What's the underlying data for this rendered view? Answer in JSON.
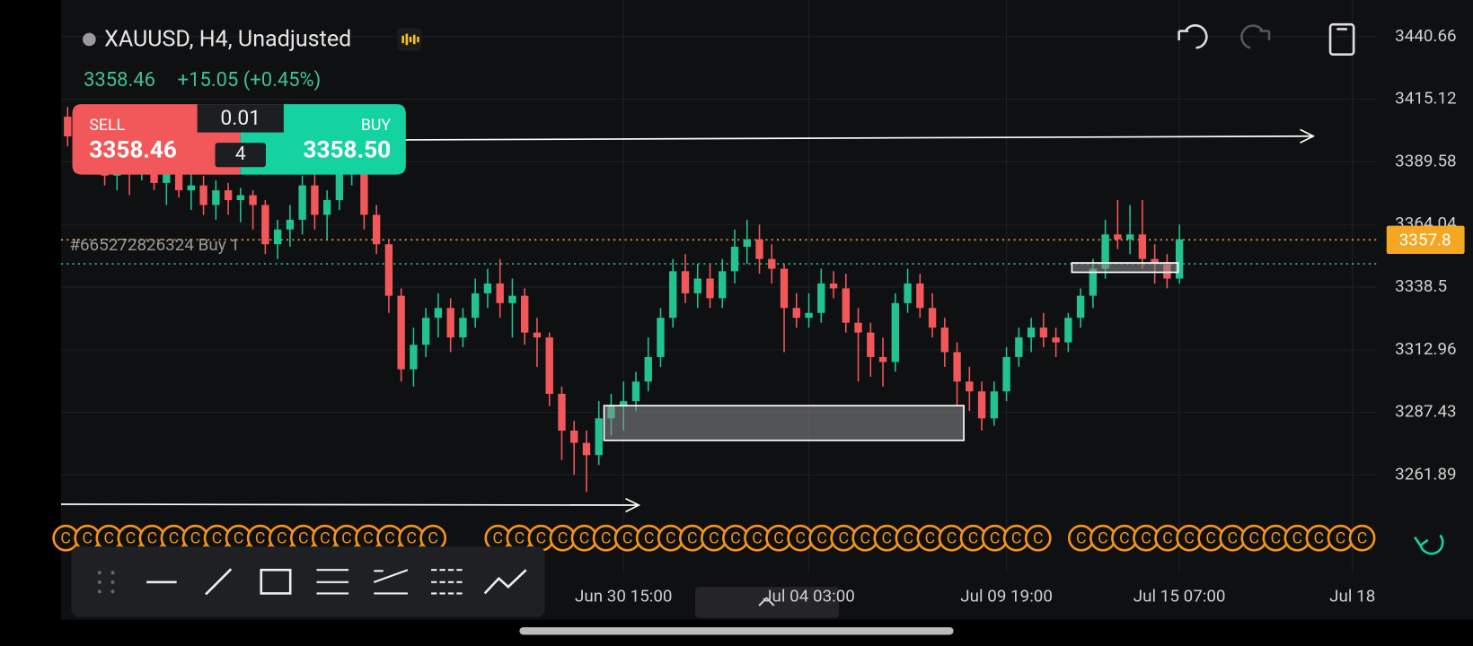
{
  "header": {
    "symbol": "XAUUSD, H4, Unadjusted",
    "last_price": "3358.46",
    "change": "+15.05 (+0.45%)"
  },
  "trade_panel": {
    "sell_label": "SELL",
    "sell_price": "3358.46",
    "volume": "0.01",
    "spread": "4",
    "buy_label": "BUY",
    "buy_price": "3358.50"
  },
  "chart_data": {
    "type": "candlestick",
    "up_color": "#22c38e",
    "down_color": "#f2575a",
    "ylim": [
      3243.1,
      3455.6
    ],
    "yticks": [
      3440.66,
      3415.12,
      3389.58,
      3364.04,
      3338.5,
      3312.96,
      3287.43,
      3261.89
    ],
    "grid": true,
    "current_price": 3357.8,
    "position_price": 3348,
    "position_label": "#665272826324 Buy 1",
    "event_marker_label": "C",
    "categories": [
      null,
      null,
      null,
      null,
      null,
      null,
      null,
      null,
      null,
      null,
      null,
      null,
      null,
      null,
      null,
      null,
      null,
      null,
      null,
      null,
      null,
      null,
      null,
      null,
      null,
      null,
      null,
      null,
      null,
      null,
      null,
      null,
      null,
      null,
      null,
      null,
      null,
      null,
      null,
      null,
      null,
      null,
      null,
      null,
      null,
      "Jun 30 15:00",
      null,
      null,
      null,
      null,
      null,
      null,
      null,
      null,
      null,
      null,
      null,
      null,
      null,
      null,
      "Jul 04 03:00",
      null,
      null,
      null,
      null,
      null,
      null,
      null,
      null,
      null,
      null,
      null,
      null,
      null,
      null,
      null,
      "Jul 09 19:00",
      null,
      null,
      null,
      null,
      null,
      null,
      null,
      null,
      null,
      null,
      null,
      null,
      null,
      "Jul 15 07:00",
      null,
      null,
      null,
      null,
      null,
      null,
      null,
      null,
      null,
      null,
      null,
      null,
      null,
      "Jul 18"
    ],
    "ohlc": [
      [
        3408,
        3412,
        3396,
        3400
      ],
      [
        3400,
        3404,
        3385,
        3390
      ],
      [
        3390,
        3398,
        3386,
        3395
      ],
      [
        3395,
        3399,
        3380,
        3384
      ],
      [
        3384,
        3392,
        3378,
        3388
      ],
      [
        3388,
        3390,
        3376,
        3385
      ],
      [
        3385,
        3395,
        3382,
        3392
      ],
      [
        3392,
        3396,
        3378,
        3381
      ],
      [
        3381,
        3389,
        3372,
        3386
      ],
      [
        3386,
        3390,
        3375,
        3378
      ],
      [
        3378,
        3386,
        3370,
        3380
      ],
      [
        3380,
        3384,
        3368,
        3372
      ],
      [
        3372,
        3382,
        3366,
        3378
      ],
      [
        3378,
        3381,
        3368,
        3374
      ],
      [
        3374,
        3379,
        3365,
        3376
      ],
      [
        3376,
        3378,
        3362,
        3372
      ],
      [
        3372,
        3374,
        3352,
        3356
      ],
      [
        3356,
        3366,
        3350,
        3362
      ],
      [
        3362,
        3372,
        3355,
        3366
      ],
      [
        3366,
        3384,
        3360,
        3380
      ],
      [
        3380,
        3386,
        3362,
        3368
      ],
      [
        3368,
        3378,
        3358,
        3374
      ],
      [
        3374,
        3394,
        3370,
        3388
      ],
      [
        3388,
        3398,
        3380,
        3392
      ],
      [
        3392,
        3395,
        3362,
        3368
      ],
      [
        3368,
        3372,
        3352,
        3356
      ],
      [
        3356,
        3358,
        3328,
        3335
      ],
      [
        3335,
        3338,
        3300,
        3305
      ],
      [
        3305,
        3322,
        3298,
        3315
      ],
      [
        3315,
        3330,
        3310,
        3326
      ],
      [
        3326,
        3336,
        3318,
        3330
      ],
      [
        3330,
        3334,
        3312,
        3318
      ],
      [
        3318,
        3330,
        3314,
        3326
      ],
      [
        3326,
        3342,
        3322,
        3336
      ],
      [
        3336,
        3346,
        3330,
        3340
      ],
      [
        3340,
        3350,
        3326,
        3332
      ],
      [
        3332,
        3342,
        3318,
        3335
      ],
      [
        3335,
        3338,
        3315,
        3320
      ],
      [
        3320,
        3326,
        3306,
        3318
      ],
      [
        3318,
        3320,
        3290,
        3295
      ],
      [
        3295,
        3298,
        3268,
        3280
      ],
      [
        3280,
        3284,
        3262,
        3275
      ],
      [
        3275,
        3280,
        3255,
        3270
      ],
      [
        3270,
        3292,
        3266,
        3285
      ],
      [
        3285,
        3295,
        3278,
        3290
      ],
      [
        3290,
        3300,
        3280,
        3292
      ],
      [
        3292,
        3304,
        3288,
        3300
      ],
      [
        3300,
        3318,
        3296,
        3310
      ],
      [
        3310,
        3330,
        3306,
        3326
      ],
      [
        3326,
        3350,
        3322,
        3345
      ],
      [
        3345,
        3352,
        3332,
        3336
      ],
      [
        3336,
        3348,
        3330,
        3342
      ],
      [
        3342,
        3348,
        3330,
        3334
      ],
      [
        3334,
        3350,
        3330,
        3345
      ],
      [
        3345,
        3362,
        3340,
        3355
      ],
      [
        3355,
        3366,
        3348,
        3358
      ],
      [
        3358,
        3364,
        3344,
        3350
      ],
      [
        3350,
        3356,
        3340,
        3346
      ],
      [
        3346,
        3348,
        3312,
        3330
      ],
      [
        3330,
        3336,
        3322,
        3326
      ],
      [
        3326,
        3336,
        3322,
        3328
      ],
      [
        3328,
        3346,
        3324,
        3340
      ],
      [
        3340,
        3345,
        3334,
        3338
      ],
      [
        3338,
        3344,
        3320,
        3324
      ],
      [
        3324,
        3330,
        3300,
        3320
      ],
      [
        3320,
        3324,
        3302,
        3310
      ],
      [
        3310,
        3318,
        3298,
        3308
      ],
      [
        3308,
        3336,
        3304,
        3332
      ],
      [
        3332,
        3346,
        3328,
        3340
      ],
      [
        3340,
        3344,
        3326,
        3330
      ],
      [
        3330,
        3336,
        3318,
        3322
      ],
      [
        3322,
        3326,
        3306,
        3312
      ],
      [
        3312,
        3316,
        3290,
        3300
      ],
      [
        3300,
        3306,
        3288,
        3296
      ],
      [
        3296,
        3300,
        3280,
        3285
      ],
      [
        3285,
        3300,
        3282,
        3296
      ],
      [
        3296,
        3314,
        3292,
        3310
      ],
      [
        3310,
        3322,
        3306,
        3318
      ],
      [
        3318,
        3326,
        3312,
        3322
      ],
      [
        3322,
        3328,
        3314,
        3318
      ],
      [
        3318,
        3322,
        3310,
        3316
      ],
      [
        3316,
        3328,
        3312,
        3326
      ],
      [
        3326,
        3338,
        3322,
        3335
      ],
      [
        3335,
        3350,
        3330,
        3346
      ],
      [
        3346,
        3366,
        3342,
        3360
      ],
      [
        3360,
        3374,
        3354,
        3358
      ],
      [
        3358,
        3372,
        3352,
        3360
      ],
      [
        3360,
        3374,
        3346,
        3350
      ],
      [
        3350,
        3356,
        3340,
        3348
      ],
      [
        3348,
        3352,
        3338,
        3342
      ],
      [
        3342,
        3364,
        3340,
        3358
      ],
      null,
      null,
      null,
      null,
      null,
      null,
      null,
      null,
      null,
      null,
      null,
      null,
      null,
      null
    ]
  }
}
